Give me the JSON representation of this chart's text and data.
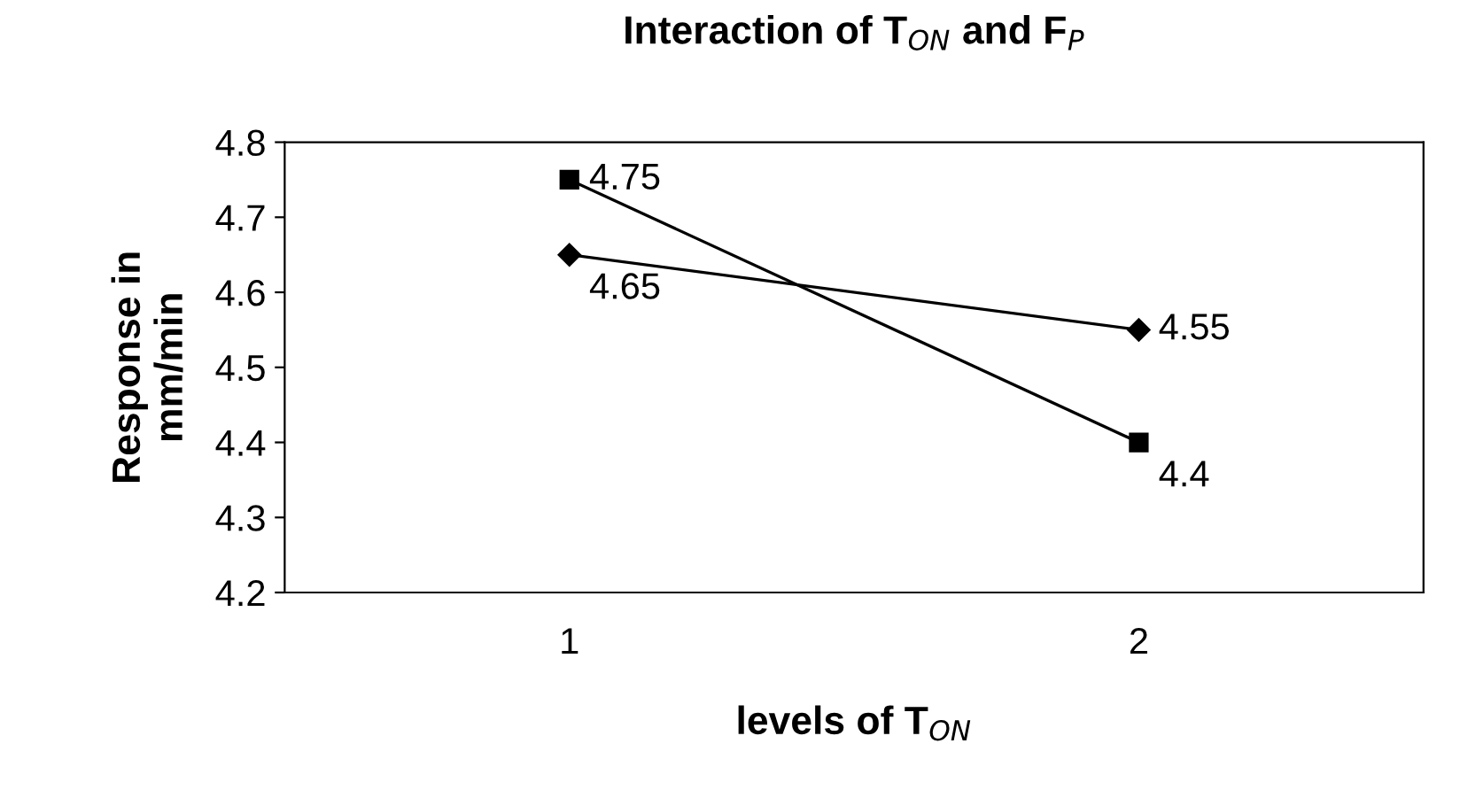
{
  "chart_data": {
    "type": "line",
    "title": "Interaction of T$_{ON}$ and F$_{P}$",
    "xlabel": "levels of T$_{ON}$",
    "ylabel": "Response in\nmm/min",
    "categories": [
      "1",
      "2"
    ],
    "series": [
      {
        "color": "#000000",
        "marker": "diamond",
        "values": [
          4.65,
          4.55
        ]
      },
      {
        "color": "#000000",
        "marker": "square",
        "values": [
          4.75,
          4.4
        ]
      }
    ],
    "ylim": [
      4.2,
      4.8
    ],
    "yticks": [
      4.2,
      4.3,
      4.4,
      4.5,
      4.6,
      4.7,
      4.8
    ],
    "grid": false,
    "legend": false,
    "data_labels": true,
    "line_style": "solid"
  }
}
